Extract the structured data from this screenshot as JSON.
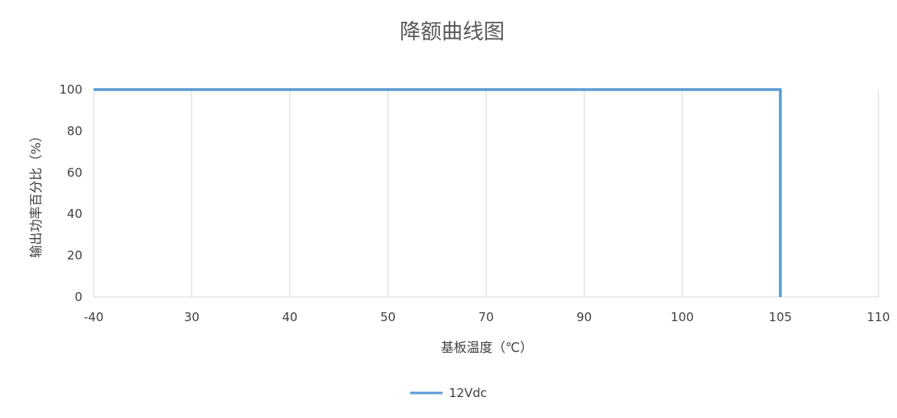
{
  "chart_data": {
    "type": "line",
    "title": "降额曲线图",
    "xlabel": "基板温度（℃）",
    "ylabel": "输出功率百分比（%）",
    "categories": [
      "-40",
      "30",
      "40",
      "50",
      "70",
      "90",
      "100",
      "105",
      "110"
    ],
    "ylim": [
      0,
      100
    ],
    "yticks": [
      "0",
      "20",
      "40",
      "60",
      "80",
      "100"
    ],
    "grid": "vertical",
    "legend_position": "bottom",
    "series": [
      {
        "name": "12Vdc",
        "color": "#5B9BD5",
        "points": [
          {
            "x": "-40",
            "y": 100
          },
          {
            "x": "105",
            "y": 100
          },
          {
            "x": "105",
            "y": 0
          }
        ]
      }
    ]
  }
}
